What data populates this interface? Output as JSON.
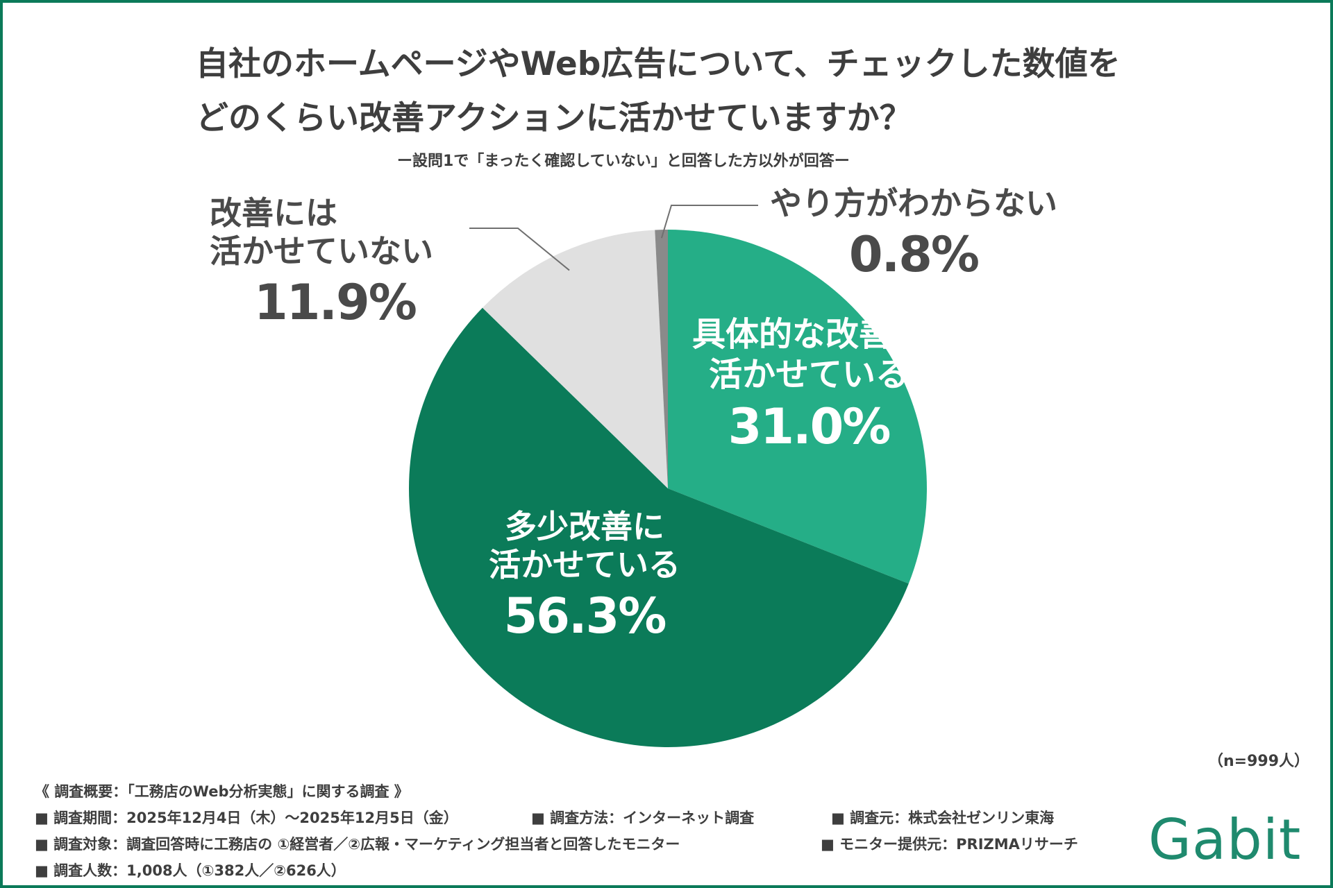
{
  "title": {
    "line1": "自社のホームページやWeb広告について、チェックした数値を",
    "line2": "どのくらい改善アクションに活かせていますか？"
  },
  "subtitle": "ー設問1で「まったく確認していない」と回答した方以外が回答ー",
  "chart_data": {
    "type": "pie",
    "slices": [
      {
        "name": "具体的な改善に活かせている",
        "value": 31.0,
        "label_lines": [
          "具体的な改善に",
          "活かせている"
        ],
        "pct": "31.0%",
        "color": "#25ae87"
      },
      {
        "name": "多少改善に活かせている",
        "value": 56.3,
        "label_lines": [
          "多少改善に",
          "活かせている"
        ],
        "pct": "56.3%",
        "color": "#0b7b59"
      },
      {
        "name": "改善には活かせていない",
        "value": 11.9,
        "label_lines": [
          "改善には",
          "活かせていない"
        ],
        "pct": "11.9%",
        "color": "#e0e0e0"
      },
      {
        "name": "やり方がわからない",
        "value": 0.8,
        "label_lines": [
          "やり方がわからない"
        ],
        "pct": "0.8%",
        "color": "#8a8a8a"
      }
    ],
    "start": "12 o'clock",
    "direction": "clockwise",
    "sample_note": "（n=999人）"
  },
  "footer": {
    "overview": "《 調査概要：「工務店のWeb分析実態」に関する調査 》",
    "period": "■ 調査期間：2025年12月4日（木）〜2025年12月5日（金）",
    "method": "■ 調査方法：インターネット調査",
    "organizer": "■ 調査元：株式会社ゼンリン東海",
    "target": "■ 調査対象：調査回答時に工務店の ①経営者／②広報・マーケティング担当者と回答したモニター",
    "provider": "■ モニター提供元：PRIZMAリサーチ",
    "count": "■ 調査人数：1,008人（①382人／②626人）"
  },
  "logo": "Gabit"
}
